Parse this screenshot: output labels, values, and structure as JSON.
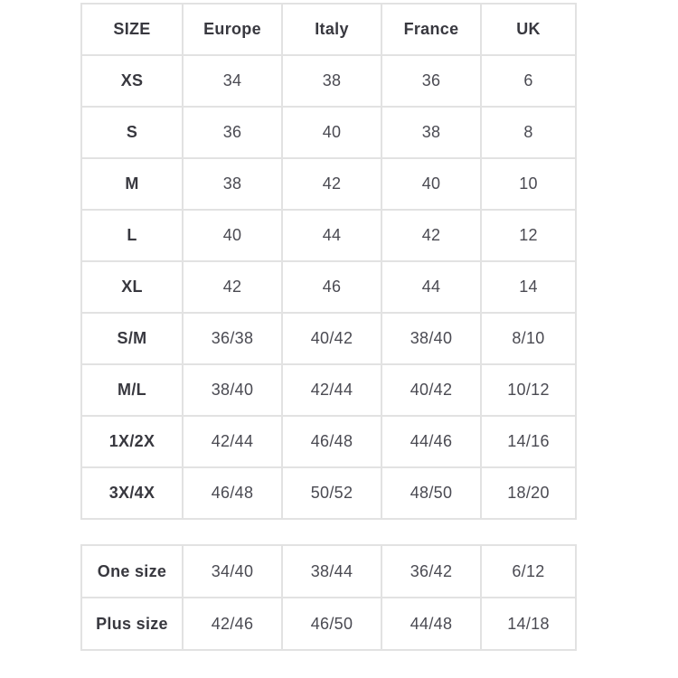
{
  "colors": {
    "background": "#ffffff",
    "border": "#e2e2e2",
    "header_text": "#38383f",
    "cell_text": "#4a4a52"
  },
  "main_table": {
    "columns": [
      "SIZE",
      "Europe",
      "Italy",
      "France",
      "UK"
    ],
    "rows": [
      {
        "size": "XS",
        "values": [
          "34",
          "38",
          "36",
          "6"
        ]
      },
      {
        "size": "S",
        "values": [
          "36",
          "40",
          "38",
          "8"
        ]
      },
      {
        "size": "M",
        "values": [
          "38",
          "42",
          "40",
          "10"
        ]
      },
      {
        "size": "L",
        "values": [
          "40",
          "44",
          "42",
          "12"
        ]
      },
      {
        "size": "XL",
        "values": [
          "42",
          "46",
          "44",
          "14"
        ]
      },
      {
        "size": "S/M",
        "values": [
          "36/38",
          "40/42",
          "38/40",
          "8/10"
        ]
      },
      {
        "size": "M/L",
        "values": [
          "38/40",
          "42/44",
          "40/42",
          "10/12"
        ]
      },
      {
        "size": "1X/2X",
        "values": [
          "42/44",
          "46/48",
          "44/46",
          "14/16"
        ]
      },
      {
        "size": "3X/4X",
        "values": [
          "46/48",
          "50/52",
          "48/50",
          "18/20"
        ]
      }
    ]
  },
  "extra_table": {
    "rows": [
      {
        "size": "One size",
        "values": [
          "34/40",
          "38/44",
          "36/42",
          "6/12"
        ]
      },
      {
        "size": "Plus size",
        "values": [
          "42/46",
          "46/50",
          "44/48",
          "14/18"
        ]
      }
    ]
  }
}
